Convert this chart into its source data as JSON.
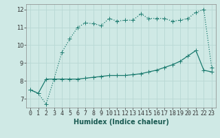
{
  "xlabel": "Humidex (Indice chaleur)",
  "background_color": "#cfe9e5",
  "grid_color": "#b8d8d4",
  "line_color": "#1a7a6e",
  "xlim": [
    -0.5,
    23.5
  ],
  "ylim": [
    6.5,
    12.3
  ],
  "xtick_positions": [
    0,
    1,
    2,
    3,
    4,
    5,
    6,
    7,
    8,
    9,
    10,
    11,
    12,
    13,
    14,
    15,
    16,
    17,
    18,
    19,
    20,
    21,
    22,
    23
  ],
  "xtick_labels": [
    "0",
    "1",
    "2",
    "3",
    "4",
    "5",
    "6",
    "7",
    "8",
    "9",
    "10",
    "11",
    "12",
    "13",
    "14",
    "15",
    "16",
    "17",
    "18",
    "19",
    "20",
    "21",
    "22",
    "23"
  ],
  "yticks": [
    7,
    8,
    9,
    10,
    11,
    12
  ],
  "series1_x": [
    0,
    1,
    2,
    3,
    4,
    5,
    6,
    7,
    8,
    9,
    10,
    11,
    12,
    13,
    14,
    15,
    16,
    17,
    18,
    19,
    20,
    21,
    22,
    23
  ],
  "series1_y": [
    7.5,
    7.3,
    6.7,
    8.1,
    9.6,
    10.35,
    11.0,
    11.25,
    11.2,
    11.1,
    11.5,
    11.35,
    11.4,
    11.4,
    11.75,
    11.5,
    11.5,
    11.5,
    11.35,
    11.4,
    11.5,
    11.85,
    12.0,
    8.75
  ],
  "series2_x": [
    0,
    1,
    2,
    3,
    4,
    5,
    6,
    7,
    8,
    9,
    10,
    11,
    12,
    13,
    14,
    15,
    16,
    17,
    18,
    19,
    20,
    21,
    22,
    23
  ],
  "series2_y": [
    7.5,
    7.3,
    8.1,
    8.1,
    8.1,
    8.1,
    8.1,
    8.15,
    8.2,
    8.25,
    8.3,
    8.3,
    8.3,
    8.35,
    8.4,
    8.5,
    8.6,
    8.75,
    8.9,
    9.1,
    9.4,
    9.7,
    8.6,
    8.5
  ],
  "tick_fontsize": 6.0,
  "xlabel_fontsize": 7.0,
  "marker_size": 2.2,
  "linewidth": 0.9
}
